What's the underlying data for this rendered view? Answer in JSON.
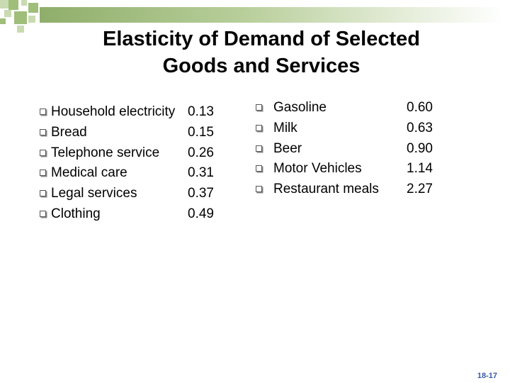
{
  "slide": {
    "title_line1": "Elasticity of Demand of Selected",
    "title_line2": "Goods and Services",
    "page_number": "18-17"
  },
  "left_items": [
    {
      "label": "Household electricity",
      "value": "0.13"
    },
    {
      "label": "Bread",
      "value": "0.15"
    },
    {
      "label": "Telephone service",
      "value": "0.26"
    },
    {
      "label": "Medical care",
      "value": "0.31"
    },
    {
      "label": "Legal services",
      "value": "0.37"
    },
    {
      "label": "Clothing",
      "value": "0.49"
    }
  ],
  "right_items": [
    {
      "label": "Gasoline",
      "value": "0.60"
    },
    {
      "label": "Milk",
      "value": "0.63"
    },
    {
      "label": "Beer",
      "value": "0.90"
    },
    {
      "label": "Motor Vehicles",
      "value": "1.14"
    },
    {
      "label": "Restaurant meals",
      "value": "2.27"
    }
  ],
  "colors": {
    "accent_green": "#8fae6a",
    "square_dark": "#9fbe7a",
    "square_light": "#c9dbb0",
    "page_number": "#3a5aa8"
  }
}
